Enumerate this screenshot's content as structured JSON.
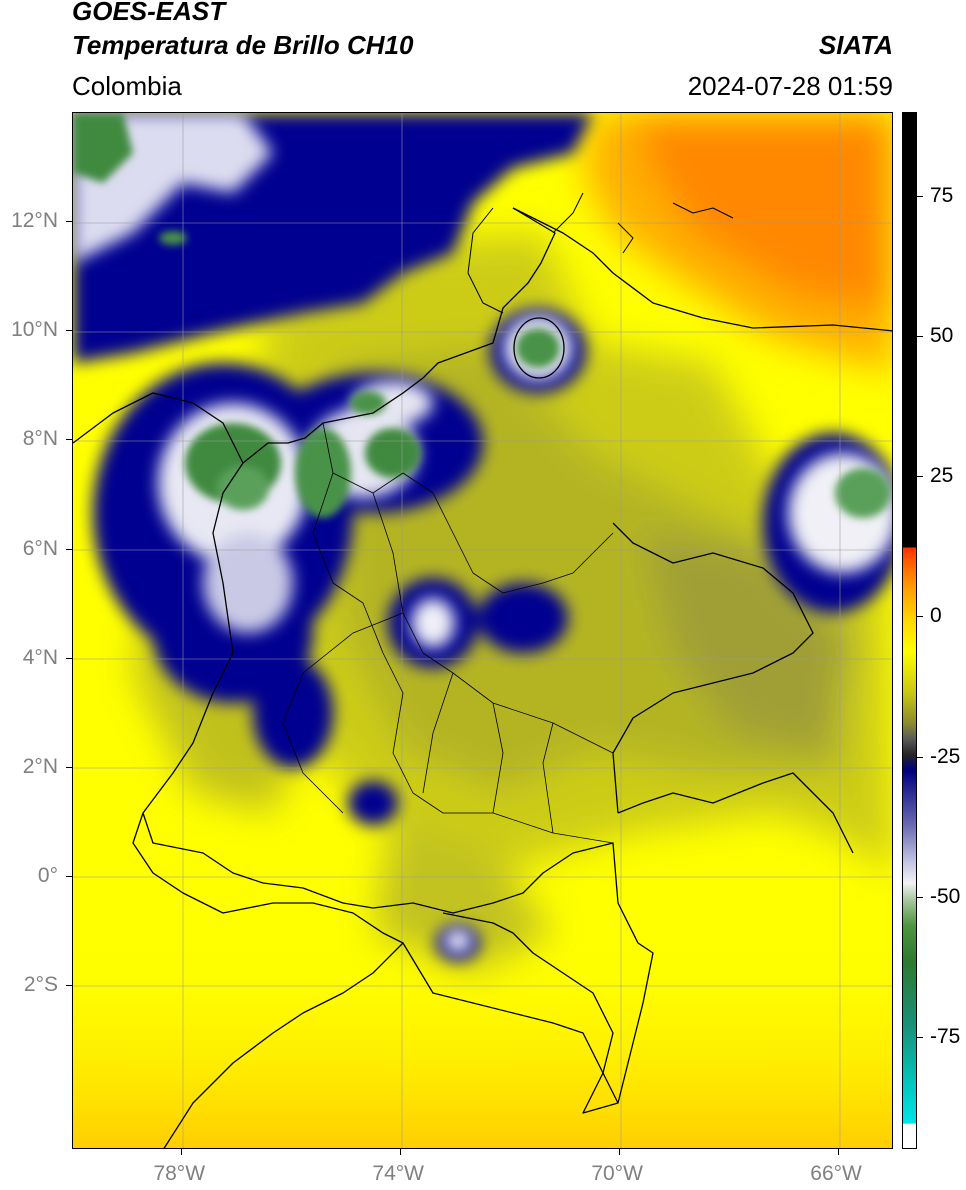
{
  "header": {
    "satellite": "GOES-EAST",
    "product": "Temperatura de Brillo CH10",
    "region": "Colombia",
    "source": "SIATA",
    "datetime": "2024-07-28 01:59"
  },
  "axes": {
    "lon_ticks": [
      {
        "value": -78,
        "label": "78°W"
      },
      {
        "value": -74,
        "label": "74°W"
      },
      {
        "value": -70,
        "label": "70°W"
      },
      {
        "value": -66,
        "label": "66°W"
      }
    ],
    "lat_ticks": [
      {
        "value": 12,
        "label": "12°N"
      },
      {
        "value": 10,
        "label": "10°N"
      },
      {
        "value": 8,
        "label": "8°N"
      },
      {
        "value": 6,
        "label": "6°N"
      },
      {
        "value": 4,
        "label": "4°N"
      },
      {
        "value": 2,
        "label": "2°N"
      },
      {
        "value": 0,
        "label": "0°"
      },
      {
        "value": -2,
        "label": "2°S"
      }
    ],
    "extent": {
      "lon_min": -80.0,
      "lon_max": -65.0,
      "lat_min": -5.0,
      "lat_max": 14.0
    },
    "grid": true
  },
  "colorbar": {
    "range": [
      -95,
      90
    ],
    "ticks": [
      {
        "value": 75,
        "label": "75"
      },
      {
        "value": 50,
        "label": "50"
      },
      {
        "value": 25,
        "label": "25"
      },
      {
        "value": 0,
        "label": "0"
      },
      {
        "value": -25,
        "label": "-25"
      },
      {
        "value": -50,
        "label": "-50"
      },
      {
        "value": -75,
        "label": "-75"
      }
    ]
  },
  "colors": {
    "warm": "#ffff00",
    "hot": "#ff8c00",
    "mid": "#c8c81e",
    "cold_blue": "#00008c",
    "cold_white": "#f0f0f0",
    "coldest_green": "#3c8c3c"
  }
}
